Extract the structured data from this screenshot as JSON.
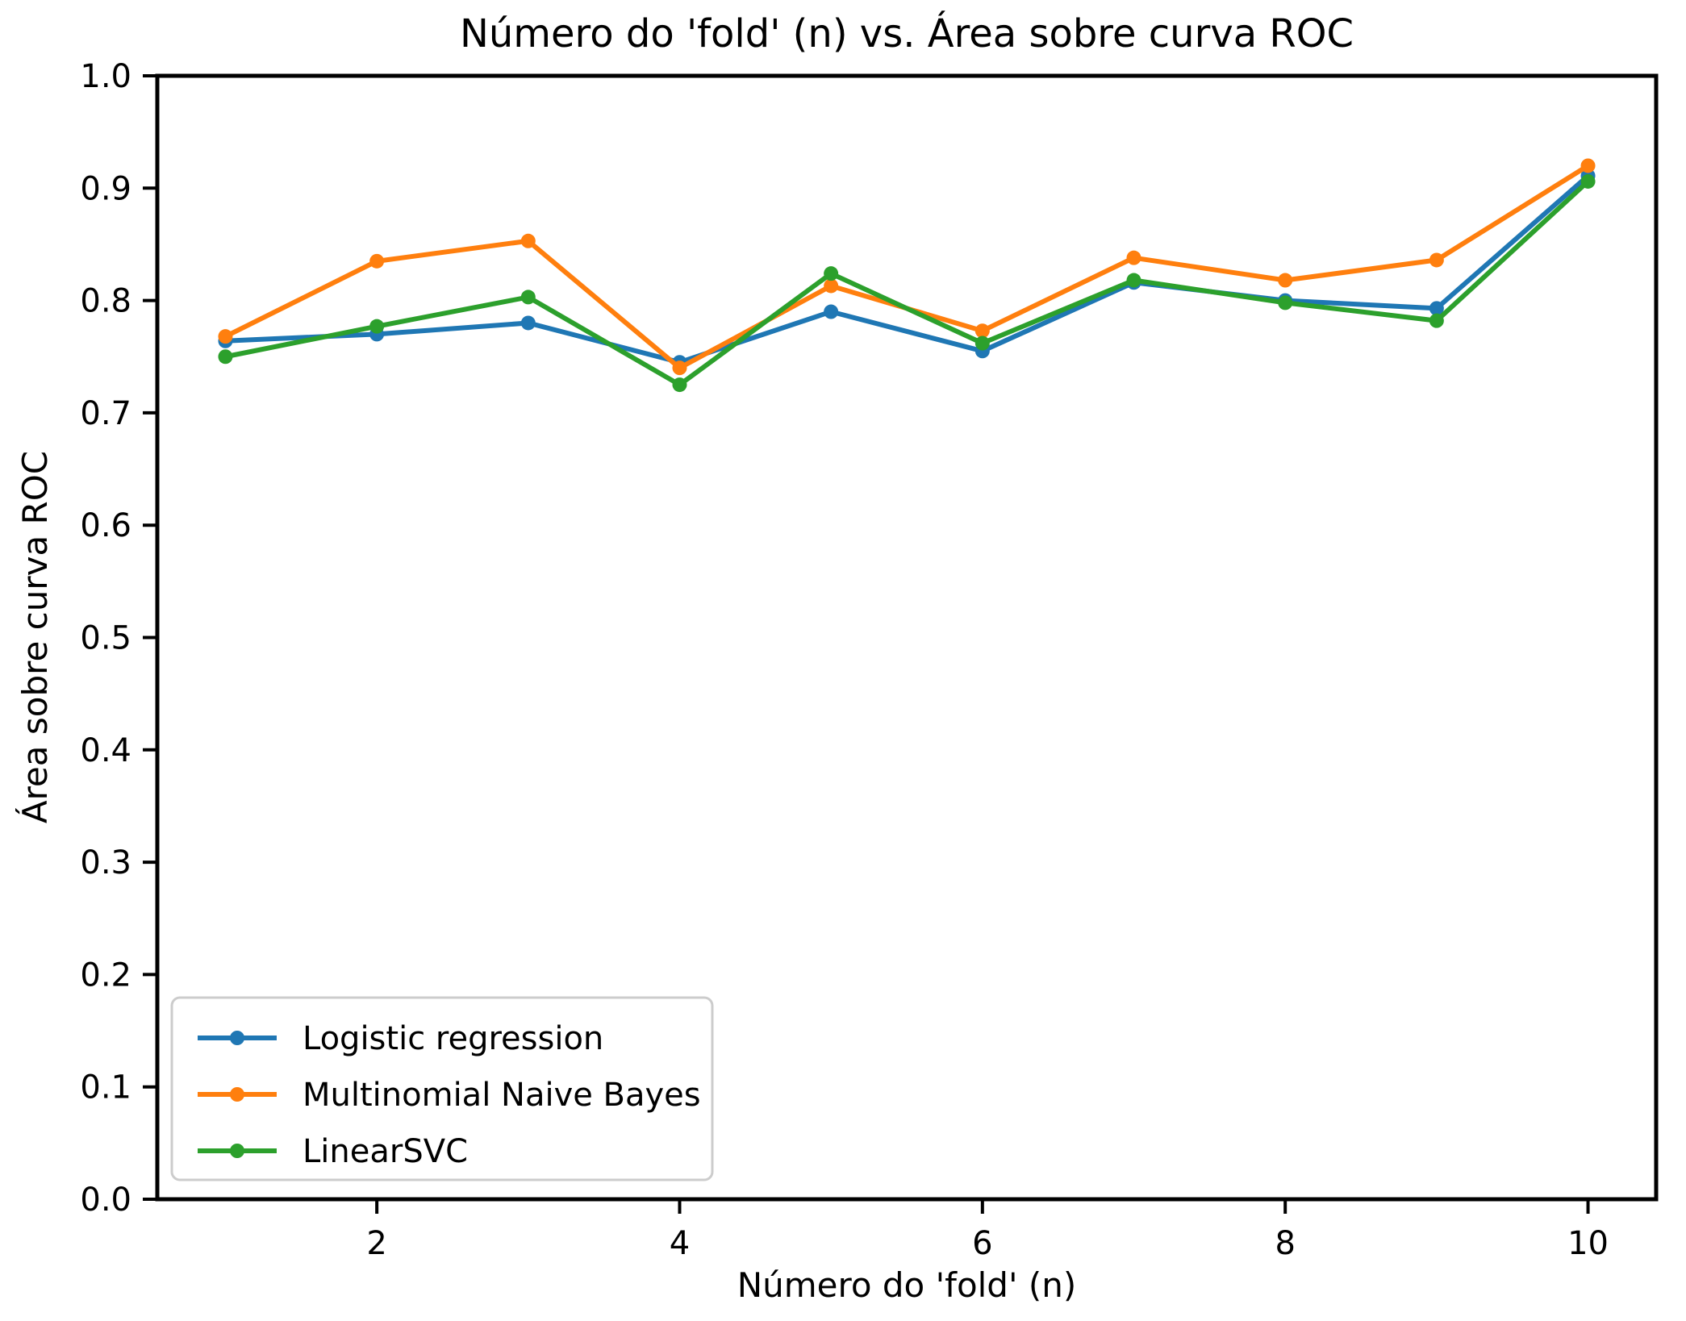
{
  "figure": {
    "background": "#ffffff",
    "axis_color": "#000000"
  },
  "chart_data": {
    "type": "line",
    "title": "Número do 'fold' (n) vs. Área sobre curva ROC",
    "xlabel": "Número do 'fold' (n)",
    "ylabel": "Área sobre curva ROC",
    "x": [
      1,
      2,
      3,
      4,
      5,
      6,
      7,
      8,
      9,
      10
    ],
    "series": [
      {
        "name": "Logistic regression",
        "color": "#1f77b4",
        "values": [
          0.764,
          0.77,
          0.78,
          0.745,
          0.79,
          0.755,
          0.816,
          0.8,
          0.793,
          0.911
        ]
      },
      {
        "name": "Multinomial Naive Bayes",
        "color": "#ff7f0e",
        "values": [
          0.768,
          0.835,
          0.853,
          0.74,
          0.813,
          0.773,
          0.838,
          0.818,
          0.836,
          0.92
        ]
      },
      {
        "name": "LinearSVC",
        "color": "#2ca02c",
        "values": [
          0.75,
          0.777,
          0.803,
          0.725,
          0.824,
          0.762,
          0.818,
          0.798,
          0.782,
          0.906
        ]
      }
    ],
    "xlim": [
      0.55,
      10.45
    ],
    "ylim": [
      0.0,
      1.0
    ],
    "x_ticks": [
      2,
      4,
      6,
      8,
      10
    ],
    "y_ticks": [
      0.0,
      0.1,
      0.2,
      0.3,
      0.4,
      0.5,
      0.6,
      0.7,
      0.8,
      0.9,
      1.0
    ],
    "grid": false,
    "legend_position": "lower-left",
    "marker": "o",
    "line_width": 6,
    "marker_radius": 9
  }
}
